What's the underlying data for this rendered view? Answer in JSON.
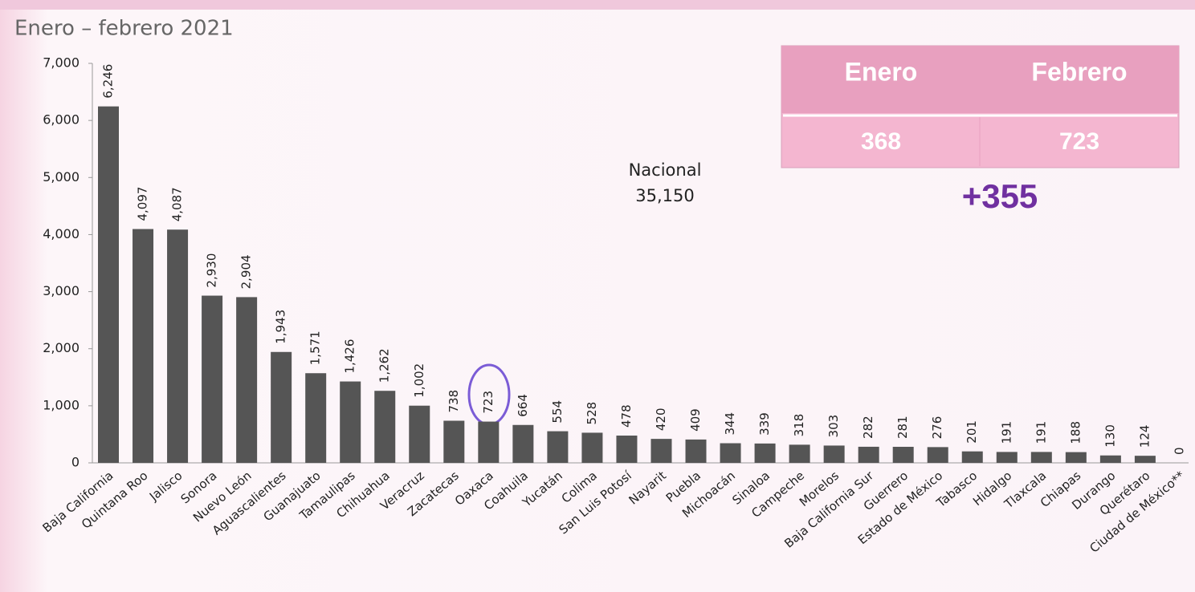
{
  "chart_data": {
    "type": "bar",
    "title": "Enero – febrero 2021",
    "categories": [
      "Baja California",
      "Quintana Roo",
      "Jalisco",
      "Sonora",
      "Nuevo León",
      "Aguascalientes",
      "Guanajuato",
      "Tamaulipas",
      "Chihuahua",
      "Veracruz",
      "Zacatecas",
      "Oaxaca",
      "Coahuila",
      "Yucatán",
      "Colima",
      "San Luis Potosí",
      "Nayarit",
      "Puebla",
      "Michoacán",
      "Sinaloa",
      "Campeche",
      "Morelos",
      "Baja California Sur",
      "Guerrero",
      "Estado de México",
      "Tabasco",
      "Hidalgo",
      "Tlaxcala",
      "Chiapas",
      "Durango",
      "Querétaro",
      "Ciudad de México**"
    ],
    "values": [
      6246,
      4097,
      4087,
      2930,
      2904,
      1943,
      1571,
      1426,
      1262,
      1002,
      738,
      723,
      664,
      554,
      528,
      478,
      420,
      409,
      344,
      339,
      318,
      303,
      282,
      281,
      276,
      201,
      191,
      191,
      188,
      130,
      124,
      0
    ],
    "value_labels": [
      "6,246",
      "4,097",
      "4,087",
      "2,930",
      "2,904",
      "1,943",
      "1,571",
      "1,426",
      "1,262",
      "1,002",
      "738",
      "723",
      "664",
      "554",
      "528",
      "478",
      "420",
      "409",
      "344",
      "339",
      "318",
      "303",
      "282",
      "281",
      "276",
      "201",
      "191",
      "191",
      "188",
      "130",
      "124",
      "0"
    ],
    "color": "#555555",
    "ylim": [
      0,
      7000
    ],
    "yticks": [
      0,
      {
        "value": 1000,
        "label": "1,000"
      },
      {
        "value": 2000,
        "label": "2,000"
      },
      {
        "value": 3000,
        "label": "3,000"
      },
      {
        "value": 4000,
        "label": "4,000"
      },
      {
        "value": 5000,
        "label": "5,000"
      },
      {
        "value": 6000,
        "label": "6,000"
      },
      {
        "value": 7000,
        "label": "7,000"
      }
    ],
    "grid": false,
    "annotations": [
      "Nacional",
      "35,150"
    ]
  },
  "table": {
    "headers": [
      "Enero",
      "Febrero"
    ],
    "values": [
      "368",
      "723"
    ],
    "change": "+355"
  }
}
